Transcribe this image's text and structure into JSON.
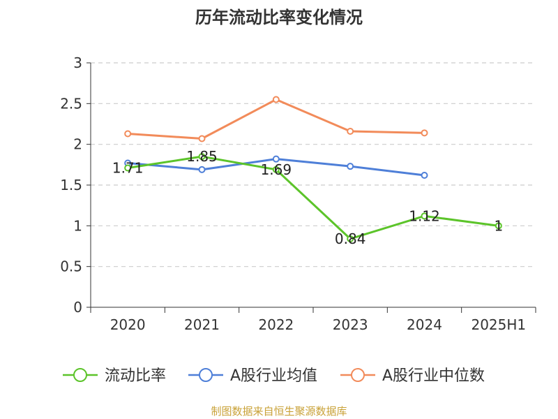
{
  "chart_data": {
    "type": "line",
    "title": "历年流动比率变化情况",
    "categories": [
      "2020",
      "2021",
      "2022",
      "2023",
      "2024",
      "2025H1"
    ],
    "ylim": [
      0,
      3
    ],
    "yticks": [
      0,
      0.5,
      1,
      1.5,
      2,
      2.5,
      3
    ],
    "ytick_labels": [
      "0",
      "0.5",
      "1",
      "1.5",
      "2",
      "2.5",
      "3"
    ],
    "grid": true,
    "legend_position": "bottom",
    "series": [
      {
        "name": "流动比率",
        "color": "#5cc42a",
        "values": [
          1.71,
          1.85,
          1.69,
          0.84,
          1.12,
          1
        ],
        "labels": [
          "1.71",
          "1.85",
          "1.69",
          "0.84",
          "1.12",
          "1"
        ]
      },
      {
        "name": "A股行业均值",
        "color": "#4e7fd8",
        "values": [
          1.77,
          1.69,
          1.82,
          1.73,
          1.62,
          null
        ]
      },
      {
        "name": "A股行业中位数",
        "color": "#f28b5a",
        "values": [
          2.13,
          2.07,
          2.55,
          2.16,
          2.14,
          null
        ]
      }
    ]
  },
  "footer": {
    "source": "制图数据来自恒生聚源数据库",
    "source_color": "#c9a238"
  }
}
